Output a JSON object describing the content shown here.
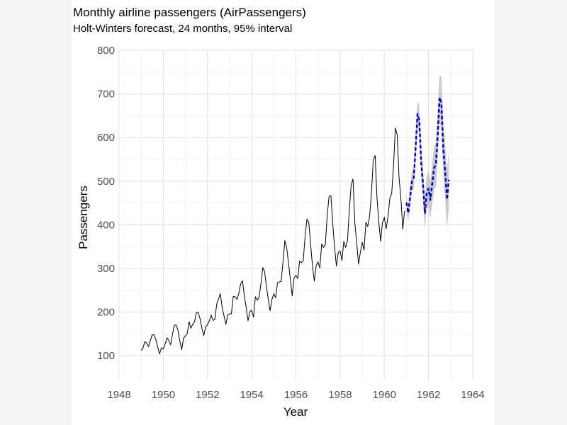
{
  "chart_data": {
    "type": "line",
    "title": "Monthly airline passengers (AirPassengers)",
    "subtitle": "Holt-Winters forecast, 24 months, 95% interval",
    "xlabel": "Year",
    "ylabel": "Passengers",
    "xlim": [
      1948,
      1964
    ],
    "ylim": [
      45,
      800
    ],
    "xticks": [
      1948,
      1950,
      1952,
      1954,
      1956,
      1958,
      1960,
      1962,
      1964
    ],
    "yticks": [
      100,
      200,
      300,
      400,
      500,
      600,
      700,
      800
    ],
    "grid": true,
    "legend": "none",
    "colors": {
      "observed": "#000000",
      "forecast": "#0000cc",
      "interval": "#bfbfbf",
      "grid_major": "#e0e0e0",
      "grid_minor": "#f2f2f2"
    },
    "observed": {
      "start": 1949.0,
      "step": 0.0833333,
      "values": [
        112,
        118,
        132,
        129,
        121,
        135,
        148,
        148,
        136,
        119,
        104,
        118,
        115,
        126,
        141,
        135,
        125,
        149,
        170,
        170,
        158,
        133,
        114,
        140,
        145,
        150,
        178,
        163,
        172,
        178,
        199,
        199,
        184,
        162,
        146,
        166,
        171,
        180,
        193,
        181,
        183,
        218,
        230,
        242,
        209,
        191,
        172,
        194,
        196,
        196,
        236,
        235,
        229,
        243,
        264,
        272,
        237,
        211,
        180,
        201,
        204,
        188,
        235,
        227,
        234,
        264,
        302,
        293,
        259,
        229,
        203,
        229,
        242,
        233,
        267,
        269,
        270,
        315,
        364,
        347,
        312,
        274,
        237,
        278,
        284,
        277,
        317,
        313,
        318,
        374,
        413,
        405,
        355,
        306,
        271,
        306,
        315,
        301,
        356,
        348,
        355,
        422,
        465,
        467,
        404,
        347,
        305,
        336,
        340,
        318,
        362,
        348,
        363,
        435,
        491,
        505,
        404,
        359,
        310,
        337,
        360,
        342,
        406,
        396,
        420,
        472,
        548,
        559,
        463,
        407,
        362,
        405,
        417,
        391,
        419,
        461,
        472,
        535,
        622,
        606,
        508,
        461,
        390,
        432
      ]
    },
    "forecast": {
      "start": 1961.0,
      "step": 0.0833333,
      "values": [
        451,
        427,
        464,
        500,
        508,
        577,
        654,
        640,
        543,
        494,
        427,
        472,
        483,
        457,
        494,
        530,
        538,
        607,
        692,
        679,
        574,
        524,
        458,
        503
      ],
      "lower": [
        433,
        408,
        443,
        477,
        483,
        550,
        624,
        609,
        511,
        460,
        391,
        434,
        442,
        414,
        449,
        482,
        487,
        553,
        638,
        620,
        514,
        461,
        393,
        436
      ],
      "upper": [
        469,
        446,
        485,
        523,
        533,
        604,
        684,
        671,
        575,
        528,
        463,
        510,
        524,
        500,
        539,
        578,
        589,
        661,
        742,
        738,
        634,
        587,
        523,
        570
      ]
    }
  }
}
